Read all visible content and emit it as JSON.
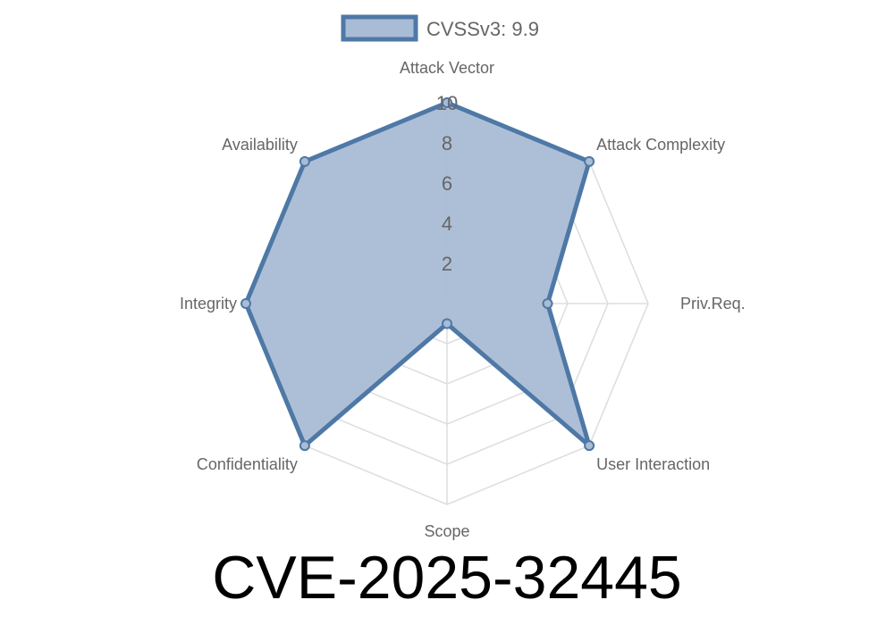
{
  "chart_data": {
    "type": "radar",
    "title": "CVE-2025-32445",
    "categories": [
      "Attack Vector",
      "Attack Complexity",
      "Priv.Req.",
      "User Interaction",
      "Scope",
      "Confidentiality",
      "Integrity",
      "Availability"
    ],
    "series": [
      {
        "name": "CVSSv3: 9.9",
        "values": [
          10,
          10,
          5,
          10,
          1,
          10,
          10,
          10
        ]
      }
    ],
    "rlim": [
      0,
      10
    ],
    "ticks": [
      "2",
      "4",
      "6",
      "8",
      "10"
    ],
    "grid": true,
    "legend": "top",
    "colors": {
      "line": "#4e78a6",
      "fill": "#a9bcd5",
      "grid": "#dddddd"
    }
  }
}
